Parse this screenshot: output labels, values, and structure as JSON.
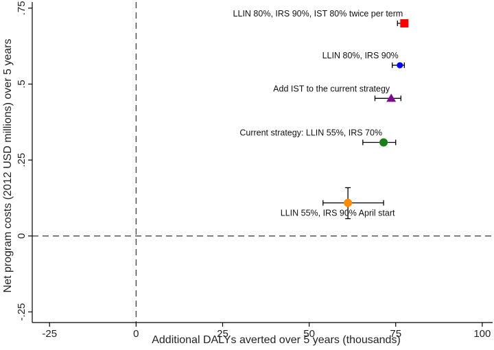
{
  "chart_data": {
    "type": "scatter",
    "title": "",
    "xlabel": "Additional DALYs averted over 5 years (thousands)",
    "ylabel": "Net program costs (2012 USD millions) over 5 years",
    "xlim": [
      -30,
      103
    ],
    "ylim": [
      -0.285,
      0.77
    ],
    "xticks": [
      {
        "value": -25,
        "label": "-25"
      },
      {
        "value": 0,
        "label": "0"
      },
      {
        "value": 25,
        "label": "25"
      },
      {
        "value": 50,
        "label": "50"
      },
      {
        "value": 75,
        "label": "75"
      },
      {
        "value": 100,
        "label": "100"
      }
    ],
    "yticks": [
      {
        "value": -0.25,
        "label": "-.25"
      },
      {
        "value": 0,
        "label": "0"
      },
      {
        "value": 0.25,
        "label": ".25"
      },
      {
        "value": 0.5,
        "label": ".5"
      },
      {
        "value": 0.75,
        "label": ".75"
      }
    ],
    "reference_lines": {
      "x": 0,
      "y": 0,
      "style": "dashed"
    },
    "grid": false,
    "points": [
      {
        "label": "LLIN 80%, IRS 90%, IST 80% twice per term",
        "x": 77.5,
        "y": 0.7,
        "x_low": 75.5,
        "x_high": 78.5,
        "marker": "square",
        "color": "#ff0000",
        "label_anchor": "end",
        "label_side": "above"
      },
      {
        "label": "LLIN 80%, IRS 90%",
        "x": 76.2,
        "y": 0.562,
        "x_low": 74.0,
        "x_high": 77.5,
        "marker": "circle",
        "color": "#0000ff",
        "label_anchor": "end",
        "label_side": "above"
      },
      {
        "label": "Add IST to the current strategy",
        "x": 73.7,
        "y": 0.453,
        "x_low": 69.0,
        "x_high": 76.5,
        "marker": "triangle",
        "color": "#7b0a8c",
        "label_anchor": "end",
        "label_side": "above"
      },
      {
        "label": "Current strategy: LLIN 55%, IRS 70%",
        "x": 71.5,
        "y": 0.308,
        "x_low": 65.5,
        "x_high": 75.0,
        "marker": "circle",
        "color": "#1a7f1a",
        "label_anchor": "end",
        "label_side": "above"
      },
      {
        "label": "LLIN 55%, IRS 90% April start",
        "x": 61.2,
        "y": 0.109,
        "x_low": 54.0,
        "x_high": 71.5,
        "y_low": 0.057,
        "y_high": 0.159,
        "marker": "circle",
        "color": "#ff8c00",
        "label_anchor": "middle",
        "label_side": "below"
      }
    ]
  }
}
